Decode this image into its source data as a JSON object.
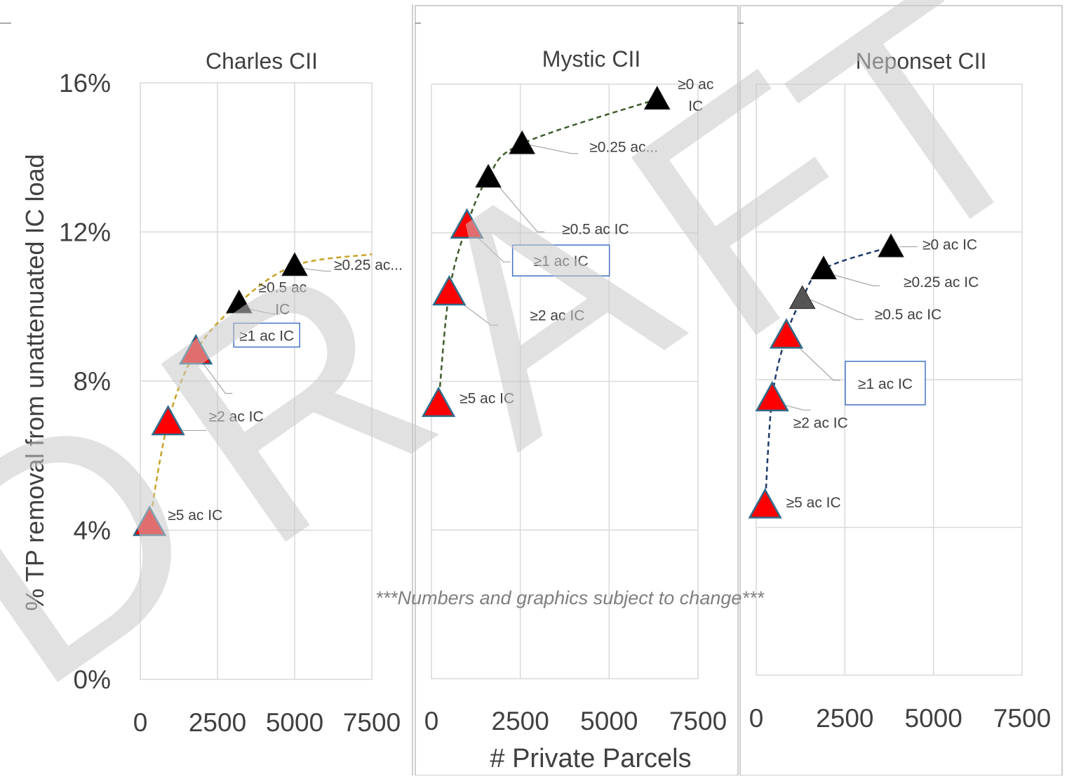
{
  "figure": {
    "ylabel": "% TP removal from unattenuated  IC load",
    "xlabel": "# Private  Parcels",
    "watermark": "DRAFT",
    "watermark_letters": [
      "D",
      "R",
      "A",
      "F",
      "T"
    ],
    "disclaimer": "***Numbers and graphics subject to change***"
  },
  "colors": {
    "red_marker": "#ff0000",
    "black_marker": "#000000",
    "gray_marker": "#555555",
    "marker_outline": "#2e6b8a",
    "charles_line": "#c9a227",
    "mystic_line": "#3d5c2a",
    "neponset_line": "#1f3b6b",
    "highlight_box": "#4472c4",
    "grid": "#d9d9d9",
    "watermark": "#c8c8c8"
  },
  "chart_data": [
    {
      "type": "scatter",
      "title": "Charles CII",
      "xlim": [
        0,
        7500
      ],
      "ylim": [
        0,
        16
      ],
      "x_ticks": [
        "0",
        "2500",
        "5000",
        "7500"
      ],
      "y_ticks": [
        "0%",
        "4%",
        "8%",
        "12%",
        "16%"
      ],
      "grid": true,
      "line_color": "#c9a227",
      "points": [
        {
          "x": 300,
          "y": 4.2,
          "label": "≥5 ac IC",
          "marker": "red",
          "boxed": false
        },
        {
          "x": 900,
          "y": 6.9,
          "label": "≥2 ac IC",
          "marker": "red",
          "boxed": false
        },
        {
          "x": 1800,
          "y": 8.8,
          "label": "≥1 ac IC",
          "marker": "red",
          "boxed": true
        },
        {
          "x": 3200,
          "y": 10.1,
          "label": "≥0.5 ac IC",
          "marker": "black",
          "boxed": false
        },
        {
          "x": 5000,
          "y": 11.1,
          "label": "≥0.25 ac...",
          "marker": "black",
          "boxed": false
        }
      ],
      "line_end": {
        "x": 7500,
        "y": 11.4
      }
    },
    {
      "type": "scatter",
      "title": "Mystic CII",
      "xlim": [
        0,
        7500
      ],
      "ylim": [
        0,
        16
      ],
      "x_ticks": [
        "0",
        "2500",
        "5000",
        "7500"
      ],
      "grid": true,
      "line_color": "#3d5c2a",
      "points": [
        {
          "x": 200,
          "y": 7.4,
          "label": "≥5 ac IC",
          "marker": "red",
          "boxed": false
        },
        {
          "x": 500,
          "y": 10.4,
          "label": "≥2 ac IC",
          "marker": "red",
          "boxed": false
        },
        {
          "x": 1000,
          "y": 12.2,
          "label": "≥1 ac IC",
          "marker": "red",
          "boxed": true
        },
        {
          "x": 1600,
          "y": 13.5,
          "label": "≥0.5 ac IC",
          "marker": "black",
          "boxed": false
        },
        {
          "x": 2550,
          "y": 14.4,
          "label": "≥0.25 ac...",
          "marker": "black",
          "boxed": false
        },
        {
          "x": 6350,
          "y": 15.6,
          "label": "≥0 ac IC",
          "marker": "black",
          "boxed": false
        }
      ]
    },
    {
      "type": "scatter",
      "title": "Neponset CII",
      "xlim": [
        0,
        7500
      ],
      "ylim": [
        0,
        16
      ],
      "x_ticks": [
        "0",
        "2500",
        "5000",
        "7500"
      ],
      "grid": true,
      "line_color": "#1f3b6b",
      "points": [
        {
          "x": 250,
          "y": 4.6,
          "label": "≥5 ac IC",
          "marker": "red",
          "boxed": false
        },
        {
          "x": 450,
          "y": 7.5,
          "label": "≥2 ac IC",
          "marker": "red",
          "boxed": false
        },
        {
          "x": 850,
          "y": 9.2,
          "label": "≥1 ac IC",
          "marker": "red",
          "boxed": true
        },
        {
          "x": 1300,
          "y": 10.2,
          "label": "≥0.5 ac IC",
          "marker": "gray",
          "boxed": false
        },
        {
          "x": 1900,
          "y": 11.0,
          "label": "≥0.25 ac IC",
          "marker": "black",
          "boxed": false
        },
        {
          "x": 3800,
          "y": 11.6,
          "label": "≥0 ac IC",
          "marker": "black",
          "boxed": false
        }
      ]
    }
  ]
}
